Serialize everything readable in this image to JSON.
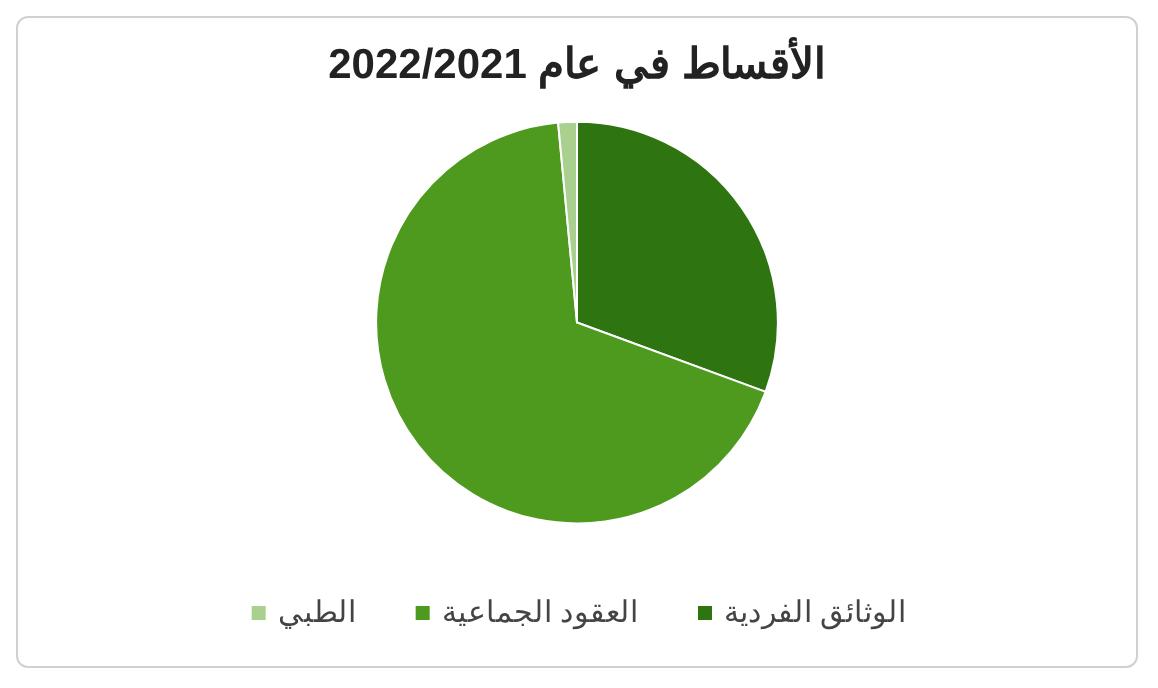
{
  "chart_data": {
    "type": "pie",
    "title": "الأقساط في عام 2022/2021",
    "categories": [
      "الوثائق الفردية",
      "العقود الجماعية",
      "الطبي"
    ],
    "values": [
      30.6,
      67.9,
      1.5
    ],
    "colors": [
      "#2e7512",
      "#4e9a1e",
      "#a9d08e"
    ],
    "legend": "bottom"
  }
}
